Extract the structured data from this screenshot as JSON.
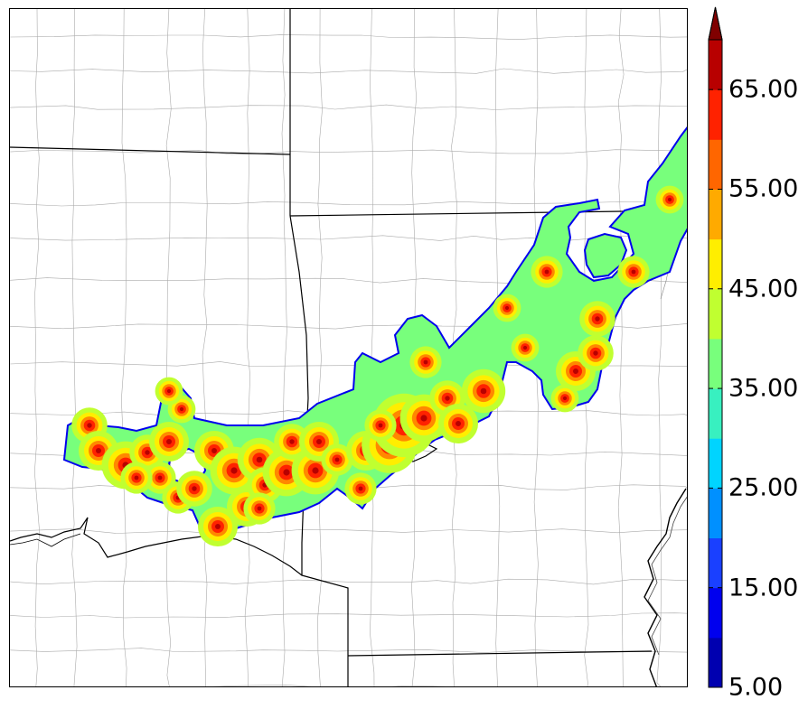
{
  "colorbar": {
    "levels": [
      5,
      10,
      15,
      20,
      25,
      30,
      35,
      40,
      45,
      50,
      55,
      60,
      65,
      70
    ],
    "colors": [
      "#0000b0",
      "#0000ee",
      "#1a40ff",
      "#0090ff",
      "#00d4ff",
      "#38f0c0",
      "#78ff7c",
      "#c0ff30",
      "#ffee00",
      "#ffaa00",
      "#ff6600",
      "#ff2200",
      "#b80000"
    ],
    "extend_color": "#800000",
    "tick_labels": [
      {
        "value": 5,
        "text": "5.00"
      },
      {
        "value": 15,
        "text": "15.00"
      },
      {
        "value": 25,
        "text": "25.00"
      },
      {
        "value": 35,
        "text": "35.00"
      },
      {
        "value": 45,
        "text": "45.00"
      },
      {
        "value": 55,
        "text": "55.00"
      },
      {
        "value": 65,
        "text": "65.00"
      }
    ]
  },
  "map": {
    "boundary_color": "#000000",
    "county_line_color": "#aaaaaa",
    "river_color": "#000000"
  }
}
